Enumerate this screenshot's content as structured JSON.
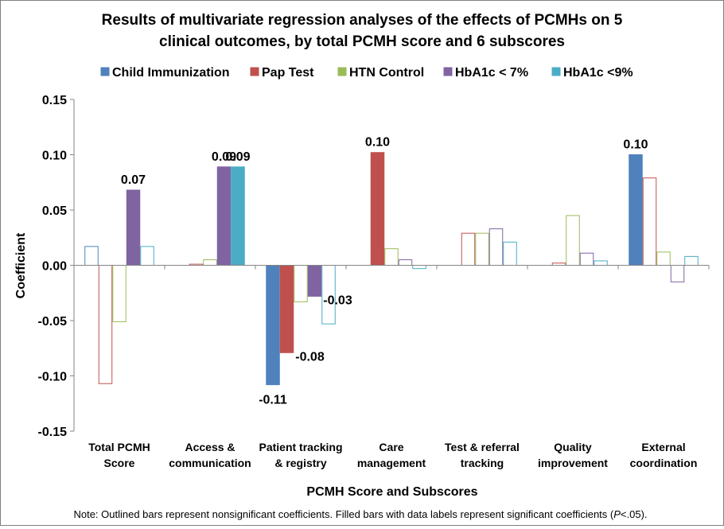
{
  "chart_data": {
    "type": "bar",
    "title_lines": [
      "Results of multivariate regression analyses of the effects of PCMHs on 5",
      "clinical outcomes, by total PCMH score and 6 subscores"
    ],
    "xlabel": "PCMH Score and Subscores",
    "ylabel": "Coefficient",
    "ylim": [
      -0.15,
      0.15
    ],
    "yticks": [
      0.15,
      0.1,
      0.05,
      0.0,
      -0.05,
      -0.1,
      -0.15
    ],
    "ytick_labels": [
      "0.15",
      "0.10",
      "0.05",
      "0.00",
      "-0.05",
      "-0.10",
      "-0.15"
    ],
    "grid": false,
    "legend_position": "top",
    "categories": [
      [
        "Total PCMH",
        "Score"
      ],
      [
        "Access  &",
        "communication"
      ],
      [
        "Patient tracking",
        "& registry"
      ],
      [
        "Care",
        "management"
      ],
      [
        "Test & referral",
        "tracking"
      ],
      [
        "Quality",
        "improvement"
      ],
      [
        "External",
        "coordination"
      ]
    ],
    "series": [
      {
        "name": "Child Immunization",
        "color": "#4f81bd",
        "values": [
          0.017,
          0.0,
          -0.108,
          0.0,
          0.0,
          0.0,
          0.1
        ],
        "significant": [
          false,
          false,
          true,
          false,
          false,
          false,
          true
        ],
        "labels": [
          "",
          "",
          "-0.11",
          "",
          "",
          "",
          "0.10"
        ]
      },
      {
        "name": "Pap Test",
        "color": "#c0504d",
        "values": [
          -0.107,
          0.001,
          -0.079,
          0.102,
          0.029,
          0.002,
          0.079
        ],
        "significant": [
          false,
          false,
          true,
          true,
          false,
          false,
          false
        ],
        "labels": [
          "",
          "",
          "-0.08",
          "0.10",
          "",
          "",
          ""
        ]
      },
      {
        "name": "HTN Control",
        "color": "#9bbb59",
        "values": [
          -0.051,
          0.005,
          -0.033,
          0.015,
          0.029,
          0.045,
          0.012
        ],
        "significant": [
          false,
          false,
          false,
          false,
          false,
          false,
          false
        ],
        "labels": [
          "",
          "",
          "",
          "",
          "",
          "",
          ""
        ]
      },
      {
        "name": "HbA1c < 7%",
        "color": "#8064a2",
        "values": [
          0.068,
          0.089,
          -0.028,
          0.005,
          0.033,
          0.011,
          -0.015
        ],
        "significant": [
          true,
          true,
          true,
          false,
          false,
          false,
          false
        ],
        "labels": [
          "0.07",
          "0.09",
          "-0.03",
          "",
          "",
          "",
          ""
        ]
      },
      {
        "name": "HbA1c <9%",
        "color": "#4bacc6",
        "values": [
          0.017,
          0.089,
          -0.053,
          -0.003,
          0.021,
          0.004,
          0.008
        ],
        "significant": [
          false,
          true,
          false,
          false,
          false,
          false,
          false
        ],
        "labels": [
          "",
          "0.09",
          "",
          "",
          "",
          "",
          ""
        ]
      }
    ],
    "note_prefix": "Note: Outlined bars represent nonsignificant coefficients. Filled bars with data labels represent significant coefficients (",
    "note_italic": "P",
    "note_suffix": "<.05)."
  }
}
